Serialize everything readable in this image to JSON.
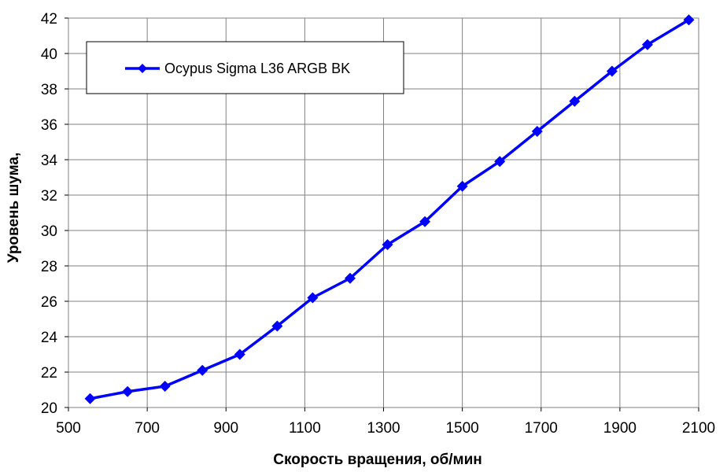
{
  "chart_data": {
    "type": "line",
    "xlabel": "Скорость вращения, об/мин",
    "ylabel": "Уровень шума,",
    "xlim": [
      500,
      2100
    ],
    "ylim": [
      20,
      42
    ],
    "xticks": [
      500,
      700,
      900,
      1100,
      1300,
      1500,
      1700,
      1900,
      2100
    ],
    "yticks": [
      20,
      22,
      24,
      26,
      28,
      30,
      32,
      34,
      36,
      38,
      40,
      42
    ],
    "grid": true,
    "legend_position": "top-left",
    "series": [
      {
        "name": "Ocypus Sigma L36 ARGB BK",
        "color": "#0000ff",
        "marker": "diamond",
        "x": [
          555,
          650,
          745,
          840,
          935,
          1030,
          1120,
          1215,
          1310,
          1405,
          1500,
          1595,
          1690,
          1785,
          1880,
          1970,
          2075
        ],
        "y": [
          20.5,
          20.9,
          21.2,
          22.1,
          23.0,
          24.6,
          26.2,
          27.3,
          29.2,
          30.5,
          32.5,
          33.9,
          35.6,
          37.3,
          39.0,
          40.5,
          41.9
        ]
      }
    ]
  }
}
